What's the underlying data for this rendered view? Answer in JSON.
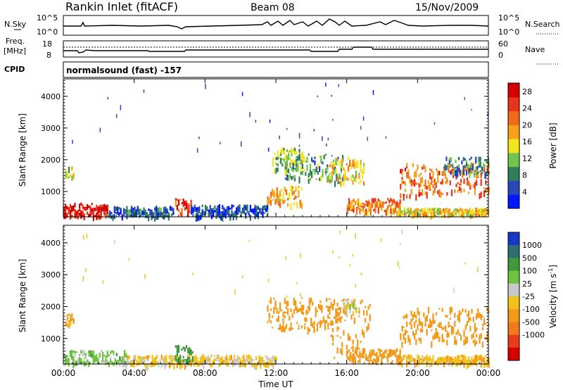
{
  "header": {
    "station": "Rankin Inlet (fitACF)",
    "beam": "Beam 08",
    "date": "15/Nov/2009"
  },
  "noise_panel": {
    "left_label": "N.Sky",
    "right_label": "N.Search",
    "left_ticks": [
      "10^5",
      "10^0"
    ],
    "right_ticks": [
      "10^5",
      "10^0"
    ]
  },
  "freq_panel": {
    "left_label_line1": "Freq.",
    "left_label_line2": "[MHz]",
    "right_label": "Nave",
    "left_ticks": [
      "18",
      "8"
    ],
    "right_ticks": [
      "60",
      "0"
    ]
  },
  "cpid_panel": {
    "label": "CPID",
    "text": "normalsound (fast) -157"
  },
  "colors": {
    "power_scale": [
      "#0018ff",
      "#2a47b8",
      "#2f7f5a",
      "#6fc54e",
      "#f2e51e",
      "#f7a11a",
      "#f26b1d",
      "#e8341c",
      "#d60000"
    ],
    "velocity_scale": [
      "#1538c7",
      "#2f6f6f",
      "#3f9a3d",
      "#6fc43f",
      "#c8c8c8",
      "#f2c21a",
      "#f39a1a",
      "#f07a1c",
      "#e83d1c",
      "#d60000"
    ]
  },
  "chart_data": [
    {
      "type": "heatmap",
      "title": "",
      "xlabel": "Time UT",
      "ylabel": "Slant Range [km]",
      "x_ticks": [
        "00:00",
        "04:00",
        "08:00",
        "12:00",
        "16:00",
        "20:00",
        "00:00"
      ],
      "xlim_hours": [
        0,
        24
      ],
      "ylim": [
        200,
        4550
      ],
      "y_ticks": [
        1000,
        2000,
        3000,
        4000
      ],
      "colorbar": {
        "label": "Power [dB]",
        "ticks": [
          4,
          8,
          12,
          16,
          20,
          24,
          28
        ],
        "range": [
          0,
          30
        ]
      },
      "echo_regions": [
        {
          "t": [
            0.0,
            2.5
          ],
          "range": [
            250,
            650
          ],
          "value": 28
        },
        {
          "t": [
            2.5,
            6.2
          ],
          "range": [
            250,
            550
          ],
          "value": 6
        },
        {
          "t": [
            0.1,
            0.6
          ],
          "range": [
            1450,
            1800
          ],
          "value": 14
        },
        {
          "t": [
            6.3,
            7.2
          ],
          "range": [
            300,
            800
          ],
          "value": 24
        },
        {
          "t": [
            7.2,
            11.5
          ],
          "range": [
            250,
            600
          ],
          "value": 5
        },
        {
          "t": [
            11.5,
            13.5
          ],
          "range": [
            600,
            1200
          ],
          "value": 18
        },
        {
          "t": [
            11.8,
            13.5
          ],
          "range": [
            1700,
            2400
          ],
          "value": 12
        },
        {
          "t": [
            12.5,
            15.8
          ],
          "range": [
            1300,
            2200
          ],
          "value": 10
        },
        {
          "t": [
            15.0,
            17.0
          ],
          "range": [
            1300,
            2100
          ],
          "value": 16
        },
        {
          "t": [
            16.0,
            19.0
          ],
          "range": [
            400,
            800
          ],
          "value": 20
        },
        {
          "t": [
            18.8,
            24.0
          ],
          "range": [
            300,
            500
          ],
          "value": 16
        },
        {
          "t": [
            19.0,
            24.0
          ],
          "range": [
            900,
            1900
          ],
          "value": 22
        },
        {
          "t": [
            21.5,
            24.0
          ],
          "range": [
            1600,
            2100
          ],
          "value": 8
        }
      ]
    },
    {
      "type": "heatmap",
      "title": "",
      "xlabel": "Time UT",
      "ylabel": "Slant Range [km]",
      "x_ticks": [
        "00:00",
        "04:00",
        "08:00",
        "12:00",
        "16:00",
        "20:00",
        "00:00"
      ],
      "xlim_hours": [
        0,
        24
      ],
      "ylim": [
        200,
        4550
      ],
      "y_ticks": [
        1000,
        2000,
        3000,
        4000
      ],
      "colorbar": {
        "label": "Velocity [m s",
        "label_sup": "-1",
        "label_end": "]",
        "ticks": [
          1000,
          500,
          100,
          25,
          -25,
          -100,
          -500,
          -1000
        ]
      },
      "echo_regions": [
        {
          "t": [
            0.0,
            3.5
          ],
          "range": [
            250,
            650
          ],
          "value": 50
        },
        {
          "t": [
            3.5,
            12.0
          ],
          "range": [
            200,
            500
          ],
          "value": -50
        },
        {
          "t": [
            0.1,
            0.6
          ],
          "range": [
            1450,
            1800
          ],
          "value": -150
        },
        {
          "t": [
            6.3,
            7.3
          ],
          "range": [
            300,
            800
          ],
          "value": 200
        },
        {
          "t": [
            11.5,
            15.8
          ],
          "range": [
            1300,
            2300
          ],
          "value": -200
        },
        {
          "t": [
            15.0,
            17.3
          ],
          "range": [
            400,
            2300
          ],
          "value": -200
        },
        {
          "t": [
            15.8,
            16.5
          ],
          "range": [
            1800,
            2250
          ],
          "value": 0
        },
        {
          "t": [
            16.0,
            19.0
          ],
          "range": [
            300,
            700
          ],
          "value": -300
        },
        {
          "t": [
            19.0,
            24.0
          ],
          "range": [
            900,
            2000
          ],
          "value": -200
        },
        {
          "t": [
            19.0,
            24.0
          ],
          "range": [
            250,
            500
          ],
          "value": -80
        }
      ]
    }
  ]
}
